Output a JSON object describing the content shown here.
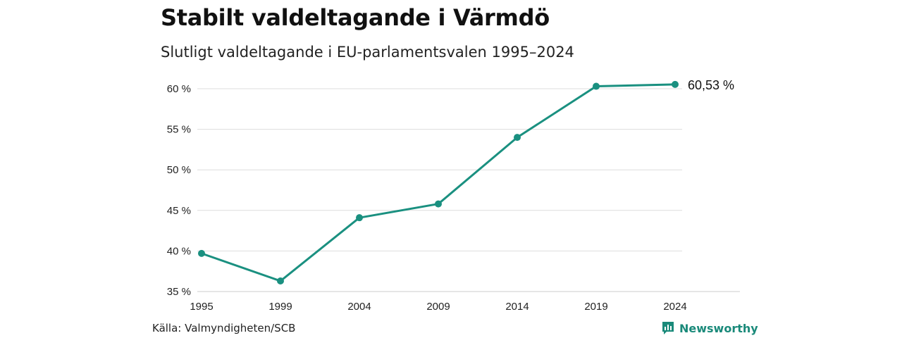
{
  "title": "Stabilt valdeltagande i Värmdö",
  "subtitle": "Slutligt valdeltagande i EU-parlamentsvalen 1995–2024",
  "source": "Källa: Valmyndigheten/SCB",
  "brand": {
    "name": "Newsworthy",
    "icon": "newsworthy-logo-icon",
    "color": "#1a8a7a"
  },
  "colors": {
    "line": "#1a9080",
    "grid": "#dddddd"
  },
  "chart_data": {
    "type": "line",
    "title": "Stabilt valdeltagande i Värmdö",
    "subtitle": "Slutligt valdeltagande i EU-parlamentsvalen 1995–2024",
    "xlabel": "",
    "ylabel": "",
    "categories": [
      "1995",
      "1999",
      "2004",
      "2009",
      "2014",
      "2019",
      "2024"
    ],
    "series": [
      {
        "values": [
          39.7,
          36.3,
          44.1,
          45.8,
          54.0,
          60.3,
          60.53
        ]
      }
    ],
    "ylim": [
      35,
      60
    ],
    "yticks": [
      35,
      40,
      45,
      50,
      55,
      60
    ],
    "ytick_labels": [
      "35 %",
      "40 %",
      "45 %",
      "50 %",
      "55 %",
      "60 %"
    ],
    "end_label": "60,53 %",
    "grid": true,
    "legend": "none"
  }
}
